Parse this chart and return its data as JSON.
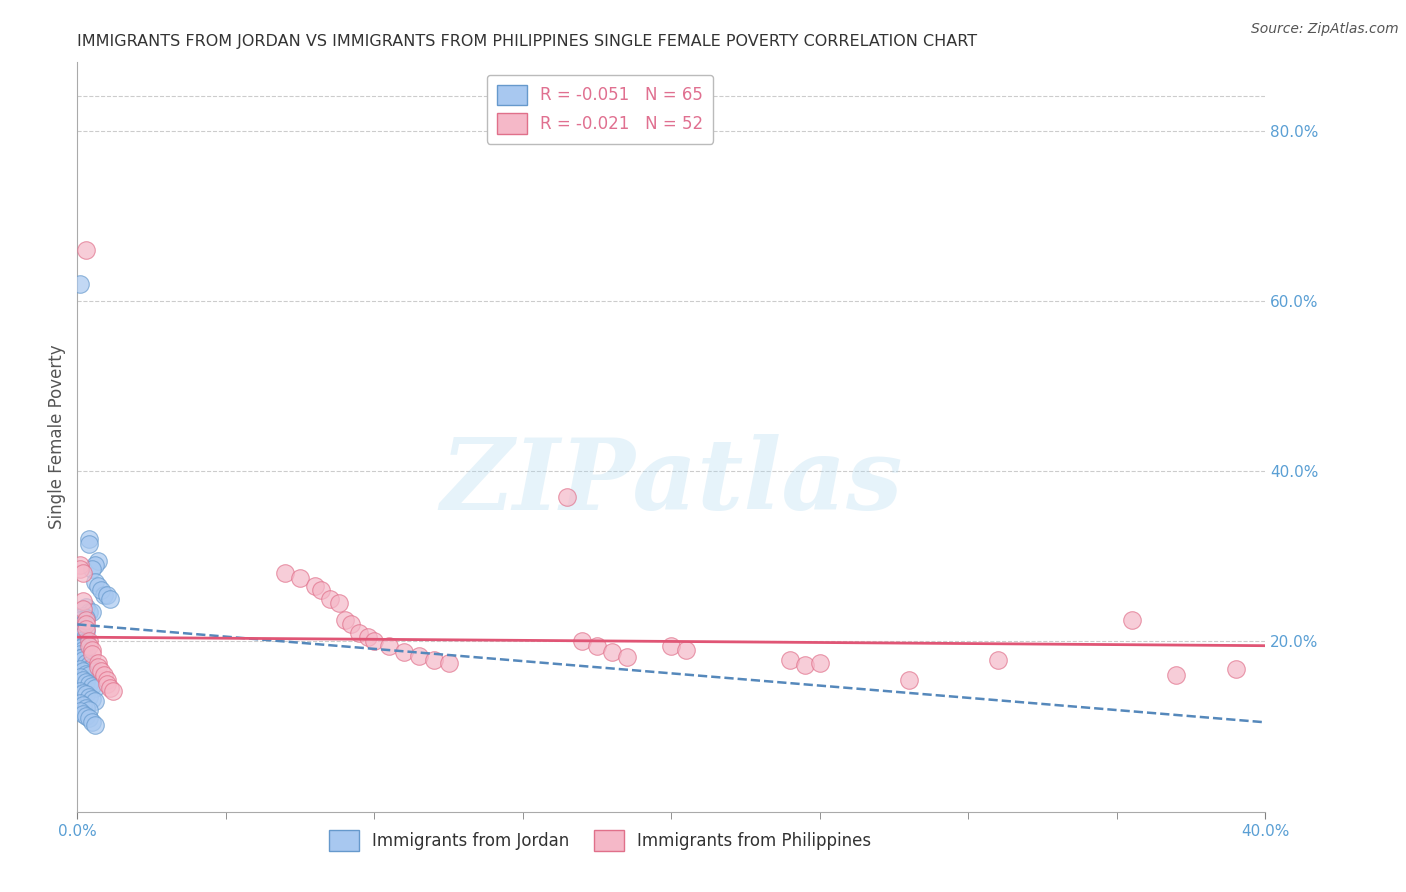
{
  "title": "IMMIGRANTS FROM JORDAN VS IMMIGRANTS FROM PHILIPPINES SINGLE FEMALE POVERTY CORRELATION CHART",
  "source": "Source: ZipAtlas.com",
  "ylabel": "Single Female Poverty",
  "xlim": [
    0.0,
    0.4
  ],
  "ylim": [
    0.0,
    0.88
  ],
  "jordan_color": "#a8c8f0",
  "jordan_edge_color": "#6699cc",
  "philippines_color": "#f5b8c8",
  "philippines_edge_color": "#e0708a",
  "trend_jordan_color": "#5588bb",
  "trend_philippines_color": "#e05575",
  "watermark": "ZIPatlas",
  "background_color": "#ffffff",
  "grid_color": "#cccccc",
  "jordan_points": [
    [
      0.001,
      0.62
    ],
    [
      0.004,
      0.32
    ],
    [
      0.004,
      0.315
    ],
    [
      0.007,
      0.295
    ],
    [
      0.006,
      0.29
    ],
    [
      0.005,
      0.285
    ],
    [
      0.006,
      0.27
    ],
    [
      0.007,
      0.265
    ],
    [
      0.009,
      0.255
    ],
    [
      0.008,
      0.26
    ],
    [
      0.01,
      0.255
    ],
    [
      0.011,
      0.25
    ],
    [
      0.003,
      0.24
    ],
    [
      0.004,
      0.235
    ],
    [
      0.005,
      0.235
    ],
    [
      0.002,
      0.23
    ],
    [
      0.003,
      0.228
    ],
    [
      0.001,
      0.225
    ],
    [
      0.002,
      0.22
    ],
    [
      0.001,
      0.218
    ],
    [
      0.002,
      0.215
    ],
    [
      0.003,
      0.212
    ],
    [
      0.001,
      0.21
    ],
    [
      0.002,
      0.208
    ],
    [
      0.001,
      0.205
    ],
    [
      0.002,
      0.202
    ],
    [
      0.003,
      0.2
    ],
    [
      0.001,
      0.198
    ],
    [
      0.002,
      0.195
    ],
    [
      0.001,
      0.192
    ],
    [
      0.002,
      0.19
    ],
    [
      0.003,
      0.188
    ],
    [
      0.001,
      0.185
    ],
    [
      0.002,
      0.182
    ],
    [
      0.001,
      0.18
    ],
    [
      0.002,
      0.178
    ],
    [
      0.003,
      0.175
    ],
    [
      0.004,
      0.172
    ],
    [
      0.005,
      0.17
    ],
    [
      0.001,
      0.168
    ],
    [
      0.002,
      0.165
    ],
    [
      0.003,
      0.162
    ],
    [
      0.004,
      0.16
    ],
    [
      0.001,
      0.158
    ],
    [
      0.002,
      0.155
    ],
    [
      0.003,
      0.152
    ],
    [
      0.004,
      0.15
    ],
    [
      0.005,
      0.148
    ],
    [
      0.006,
      0.145
    ],
    [
      0.001,
      0.142
    ],
    [
      0.002,
      0.14
    ],
    [
      0.003,
      0.138
    ],
    [
      0.004,
      0.135
    ],
    [
      0.005,
      0.132
    ],
    [
      0.006,
      0.13
    ],
    [
      0.001,
      0.128
    ],
    [
      0.002,
      0.125
    ],
    [
      0.003,
      0.122
    ],
    [
      0.004,
      0.12
    ],
    [
      0.001,
      0.118
    ],
    [
      0.002,
      0.115
    ],
    [
      0.003,
      0.112
    ],
    [
      0.004,
      0.11
    ],
    [
      0.005,
      0.105
    ],
    [
      0.006,
      0.102
    ]
  ],
  "philippines_points": [
    [
      0.001,
      0.29
    ],
    [
      0.001,
      0.285
    ],
    [
      0.002,
      0.28
    ],
    [
      0.002,
      0.248
    ],
    [
      0.002,
      0.238
    ],
    [
      0.003,
      0.225
    ],
    [
      0.003,
      0.22
    ],
    [
      0.003,
      0.215
    ],
    [
      0.003,
      0.66
    ],
    [
      0.004,
      0.2
    ],
    [
      0.004,
      0.195
    ],
    [
      0.005,
      0.19
    ],
    [
      0.005,
      0.185
    ],
    [
      0.007,
      0.175
    ],
    [
      0.007,
      0.17
    ],
    [
      0.008,
      0.165
    ],
    [
      0.009,
      0.16
    ],
    [
      0.01,
      0.155
    ],
    [
      0.01,
      0.15
    ],
    [
      0.011,
      0.145
    ],
    [
      0.012,
      0.142
    ],
    [
      0.07,
      0.28
    ],
    [
      0.075,
      0.275
    ],
    [
      0.08,
      0.265
    ],
    [
      0.082,
      0.26
    ],
    [
      0.085,
      0.25
    ],
    [
      0.088,
      0.245
    ],
    [
      0.09,
      0.225
    ],
    [
      0.092,
      0.22
    ],
    [
      0.095,
      0.21
    ],
    [
      0.098,
      0.205
    ],
    [
      0.1,
      0.2
    ],
    [
      0.105,
      0.195
    ],
    [
      0.11,
      0.188
    ],
    [
      0.115,
      0.183
    ],
    [
      0.12,
      0.178
    ],
    [
      0.125,
      0.175
    ],
    [
      0.165,
      0.37
    ],
    [
      0.17,
      0.2
    ],
    [
      0.175,
      0.195
    ],
    [
      0.18,
      0.188
    ],
    [
      0.185,
      0.182
    ],
    [
      0.2,
      0.195
    ],
    [
      0.205,
      0.19
    ],
    [
      0.24,
      0.178
    ],
    [
      0.245,
      0.172
    ],
    [
      0.25,
      0.175
    ],
    [
      0.28,
      0.155
    ],
    [
      0.31,
      0.178
    ],
    [
      0.355,
      0.225
    ],
    [
      0.37,
      0.16
    ],
    [
      0.39,
      0.168
    ]
  ]
}
